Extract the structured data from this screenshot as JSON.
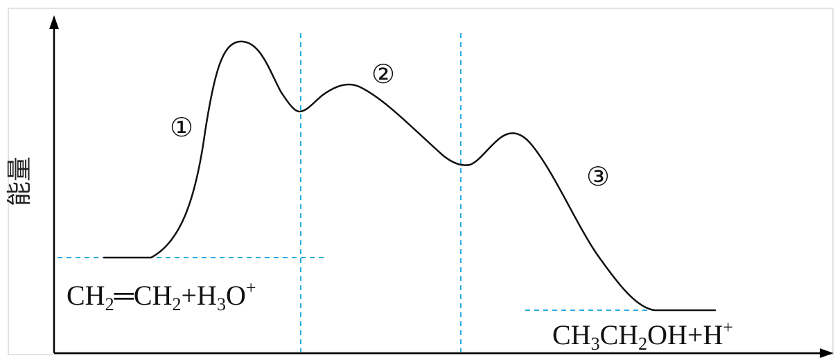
{
  "axis": {
    "y_label": "能量"
  },
  "step_labels": [
    "①",
    "②",
    "③"
  ],
  "reactants": {
    "p1": "CH",
    "p1_sub": "2",
    "p2": "═CH",
    "p2_sub": "2",
    "p3": "+H",
    "p3_sub": "3",
    "p4": "O",
    "p4_sup": "+"
  },
  "products": {
    "p1": "CH",
    "p1_sub": "3",
    "p2": "CH",
    "p2_sub": "2",
    "p3": "OH+H",
    "p3_sup": "+"
  }
}
